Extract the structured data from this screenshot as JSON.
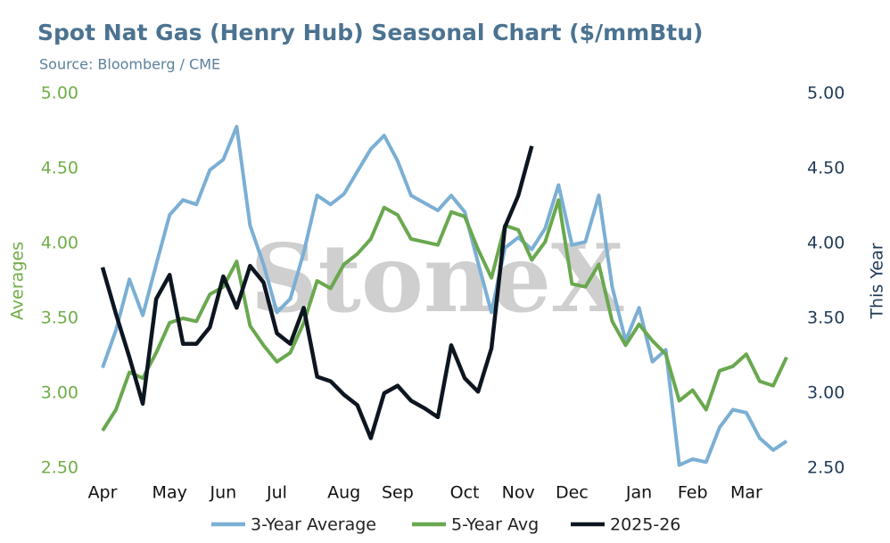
{
  "chart_data": {
    "type": "line",
    "title": "Spot Nat Gas (Henry Hub) Seasonal Chart ($/mmBtu)",
    "subtitle": "Source: Bloomberg / CME",
    "watermark": "StoneX",
    "ylabel": "Averages",
    "y2label": "This Year",
    "categories": [
      "Apr",
      null,
      null,
      null,
      null,
      "May",
      null,
      null,
      null,
      "Jun",
      null,
      null,
      null,
      "Jul",
      null,
      null,
      null,
      null,
      "Aug",
      null,
      null,
      null,
      "Sep",
      null,
      null,
      null,
      null,
      "Oct",
      null,
      null,
      null,
      "Nov",
      null,
      null,
      null,
      "Dec",
      null,
      null,
      null,
      null,
      "Jan",
      null,
      null,
      null,
      "Feb",
      null,
      null,
      null,
      "Mar",
      null,
      null,
      null
    ],
    "ylim": [
      2.5,
      5.0
    ],
    "yticks": [
      {
        "value": 2.5,
        "label": "2.50"
      },
      {
        "value": 3.0,
        "label": "3.00"
      },
      {
        "value": 3.5,
        "label": "3.50"
      },
      {
        "value": 4.0,
        "label": "4.00"
      },
      {
        "value": 4.5,
        "label": "4.50"
      },
      {
        "value": 5.0,
        "label": "5.00"
      }
    ],
    "y2lim": [
      2.5,
      5.0
    ],
    "y2ticks": [
      {
        "value": 2.5,
        "label": "2.50"
      },
      {
        "value": 3.0,
        "label": "3.00"
      },
      {
        "value": 3.5,
        "label": "3.50"
      },
      {
        "value": 4.0,
        "label": "4.00"
      },
      {
        "value": 4.5,
        "label": "4.50"
      },
      {
        "value": 5.0,
        "label": "5.00"
      }
    ],
    "grid": false,
    "legend": "bottom",
    "series": [
      {
        "name": "3-Year Average",
        "color": "#7bafd4",
        "values": [
          3.17,
          3.42,
          3.76,
          3.52,
          3.86,
          4.19,
          4.29,
          4.26,
          4.49,
          4.56,
          4.78,
          4.12,
          3.86,
          3.54,
          3.63,
          3.94,
          4.32,
          4.26,
          4.33,
          4.48,
          4.63,
          4.72,
          4.55,
          4.32,
          4.27,
          4.22,
          4.32,
          4.21,
          3.87,
          3.54,
          3.97,
          4.04,
          3.96,
          4.1,
          4.39,
          3.99,
          4.01,
          4.32,
          3.71,
          3.35,
          3.57,
          3.21,
          3.29,
          2.52,
          2.56,
          2.54,
          2.77,
          2.89,
          2.87,
          2.7,
          2.62,
          2.68
        ]
      },
      {
        "name": "5-Year Avg",
        "color": "#6aa84f",
        "values": [
          2.75,
          2.89,
          3.14,
          3.1,
          3.27,
          3.47,
          3.5,
          3.48,
          3.66,
          3.71,
          3.88,
          3.45,
          3.32,
          3.21,
          3.27,
          3.47,
          3.75,
          3.7,
          3.86,
          3.93,
          4.03,
          4.24,
          4.19,
          4.03,
          4.01,
          3.99,
          4.21,
          4.18,
          3.96,
          3.77,
          4.12,
          4.09,
          3.89,
          4.01,
          4.29,
          3.73,
          3.71,
          3.86,
          3.48,
          3.32,
          3.46,
          3.35,
          3.26,
          2.95,
          3.02,
          2.89,
          3.15,
          3.18,
          3.26,
          3.08,
          3.05,
          3.24
        ]
      },
      {
        "name": "2025-26",
        "color": "#0d1620",
        "axis": "y2",
        "values": [
          3.84,
          3.53,
          3.24,
          2.93,
          3.63,
          3.79,
          3.33,
          3.33,
          3.44,
          3.78,
          3.57,
          3.85,
          3.74,
          3.4,
          3.33,
          3.57,
          3.11,
          3.08,
          2.99,
          2.92,
          2.7,
          3.0,
          3.05,
          2.95,
          2.9,
          2.84,
          3.32,
          3.1,
          3.01,
          3.3,
          4.11,
          4.32,
          4.65,
          null,
          null,
          null,
          null,
          null,
          null,
          null,
          null,
          null,
          null,
          null,
          null,
          null,
          null,
          null,
          null,
          null,
          null,
          null
        ]
      }
    ]
  }
}
